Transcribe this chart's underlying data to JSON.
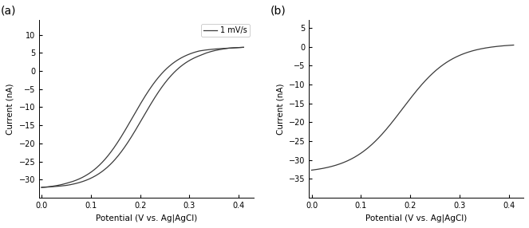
{
  "panel_a": {
    "label": "(a)",
    "xlabel": "Potential (V vs. Ag|AgCl)",
    "ylabel": "Current (nA)",
    "xlim": [
      -0.005,
      0.43
    ],
    "ylim": [
      -35,
      14
    ],
    "yticks": [
      -30,
      -25,
      -20,
      -15,
      -10,
      -5,
      0,
      5,
      10
    ],
    "xticks": [
      0.0,
      0.1,
      0.2,
      0.3,
      0.4
    ],
    "legend_label": "1 mV/s",
    "line_color": "#3a3a3a",
    "background_color": "#ffffff"
  },
  "panel_b": {
    "label": "(b)",
    "xlabel": "Potential (V vs. Ag|AgCl)",
    "ylabel": "Current (nA)",
    "xlim": [
      -0.005,
      0.43
    ],
    "ylim": [
      -40,
      7
    ],
    "yticks": [
      -35,
      -30,
      -25,
      -20,
      -15,
      -10,
      -5,
      0,
      5
    ],
    "xticks": [
      0.0,
      0.1,
      0.2,
      0.3,
      0.4
    ],
    "line_color": "#3a3a3a",
    "background_color": "#ffffff"
  }
}
